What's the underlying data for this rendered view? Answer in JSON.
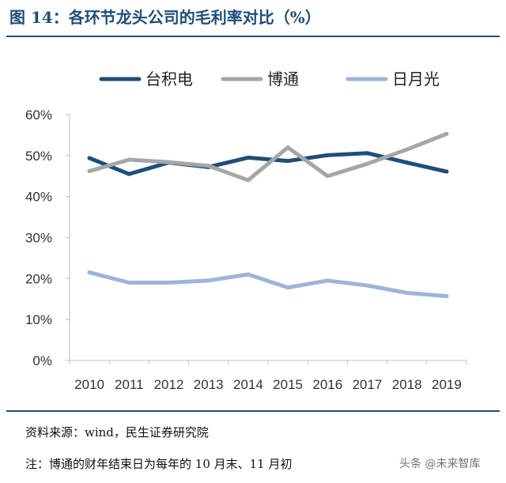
{
  "header": {
    "title": "图 14：各环节龙头公司的毛利率对比（%）"
  },
  "footer": {
    "source": "资料来源：wind，民生证券研究院",
    "note": "注：博通的财年结束日为每年的 10 月末、11 月初",
    "watermark": "头条 @未来智库"
  },
  "colors": {
    "accent": "#1f4e79"
  },
  "chart_data": {
    "type": "line",
    "categories": [
      "2010",
      "2011",
      "2012",
      "2013",
      "2014",
      "2015",
      "2016",
      "2017",
      "2018",
      "2019"
    ],
    "ylim": [
      0,
      60
    ],
    "yticks": [
      0,
      10,
      20,
      30,
      40,
      50,
      60
    ],
    "ytick_labels": [
      "0%",
      "10%",
      "20%",
      "30%",
      "40%",
      "50%",
      "60%"
    ],
    "grid": false,
    "legend": "top",
    "series": [
      {
        "name": "台积电",
        "color": "#1f4e79",
        "values": [
          49.4,
          45.5,
          48.3,
          47.2,
          49.5,
          48.7,
          50.1,
          50.6,
          48.3,
          46.1
        ]
      },
      {
        "name": "博通",
        "color": "#a6a6a6",
        "values": [
          46.2,
          49.0,
          48.4,
          47.5,
          44.0,
          52.0,
          45.0,
          48.0,
          51.5,
          55.3
        ]
      },
      {
        "name": "日月光",
        "color": "#9cb4d8",
        "values": [
          21.5,
          19.0,
          19.0,
          19.5,
          21.0,
          17.8,
          19.5,
          18.3,
          16.5,
          15.7
        ]
      }
    ]
  }
}
